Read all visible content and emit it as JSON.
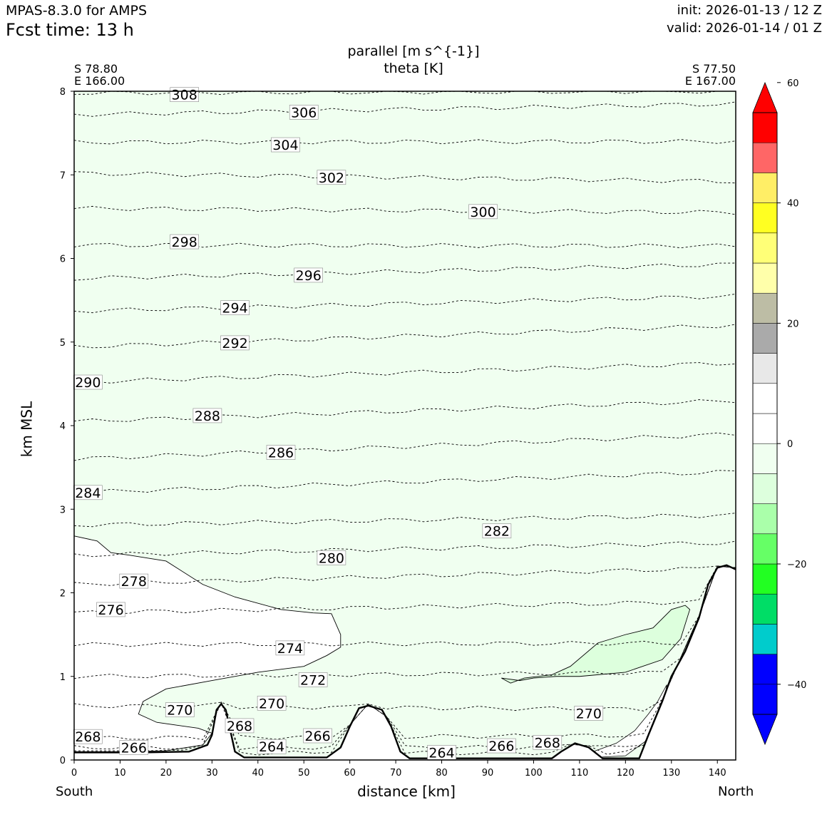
{
  "header": {
    "model": "MPAS-8.3.0 for AMPS",
    "fcst_label": "Fcst time:   13 h",
    "init": "init: 2026-01-13 / 12 Z",
    "valid": "valid: 2026-01-14 / 01 Z"
  },
  "chart_data": {
    "type": "cross-section",
    "title_line1": "parallel [m s^{-1}]",
    "title_line2": "theta [K]",
    "left_endpoint": {
      "lat": "S 78.80",
      "lon": "E 166.00"
    },
    "right_endpoint": {
      "lat": "S 77.50",
      "lon": "E 167.00"
    },
    "xlabel": "distance [km]",
    "ylabel": "km MSL",
    "xlim": [
      0,
      144
    ],
    "ylim": [
      0,
      8
    ],
    "xticks": [
      0,
      10,
      20,
      30,
      40,
      50,
      60,
      70,
      80,
      90,
      100,
      110,
      120,
      130,
      140
    ],
    "yticks": [
      0,
      1,
      2,
      3,
      4,
      5,
      6,
      7,
      8
    ],
    "left_side_label": "South",
    "right_side_label": "North",
    "terrain": [
      [
        0,
        0.09
      ],
      [
        15,
        0.09
      ],
      [
        25,
        0.1
      ],
      [
        29,
        0.18
      ],
      [
        30,
        0.3
      ],
      [
        31,
        0.6
      ],
      [
        32,
        0.67
      ],
      [
        33,
        0.6
      ],
      [
        34,
        0.35
      ],
      [
        35,
        0.1
      ],
      [
        37,
        0.03
      ],
      [
        55,
        0.03
      ],
      [
        58,
        0.15
      ],
      [
        60,
        0.4
      ],
      [
        62,
        0.62
      ],
      [
        64,
        0.65
      ],
      [
        67,
        0.6
      ],
      [
        69,
        0.4
      ],
      [
        71,
        0.1
      ],
      [
        73,
        0.02
      ],
      [
        104,
        0.02
      ],
      [
        106,
        0.1
      ],
      [
        109,
        0.2
      ],
      [
        112,
        0.15
      ],
      [
        115,
        0.02
      ],
      [
        123,
        0.02
      ],
      [
        125,
        0.3
      ],
      [
        128,
        0.7
      ],
      [
        130,
        1.0
      ],
      [
        133,
        1.3
      ],
      [
        136,
        1.7
      ],
      [
        138,
        2.1
      ],
      [
        140,
        2.3
      ],
      [
        142,
        2.33
      ],
      [
        144,
        2.28
      ]
    ],
    "theta_contours": [
      {
        "label": "264",
        "x": 43,
        "y": 0.16,
        "y0": 0.08,
        "y1": 0.09
      },
      {
        "label": "264",
        "x": 80,
        "y": 0.09,
        "y0": 0.06,
        "y1": 0.06
      },
      {
        "label": "266",
        "x": 13,
        "y": 0.15,
        "y0": 0.15,
        "y1": 0.15
      },
      {
        "label": "266",
        "x": 53,
        "y": 0.29,
        "y0": 0.26,
        "y1": 0.28
      },
      {
        "label": "266",
        "x": 93,
        "y": 0.17,
        "y0": 0.15,
        "y1": 0.18
      },
      {
        "label": "268",
        "x": 3,
        "y": 0.28,
        "y0": 0.26,
        "y1": 0.3
      },
      {
        "label": "268",
        "x": 36,
        "y": 0.41,
        "y0": 0.26,
        "y1": 0.3
      },
      {
        "label": "268",
        "x": 103,
        "y": 0.21,
        "y0": 0.26,
        "y1": 0.3
      },
      {
        "label": "270",
        "x": 23,
        "y": 0.6,
        "y0": 0.65,
        "y1": 0.6
      },
      {
        "label": "270",
        "x": 43,
        "y": 0.68,
        "y0": 0.65,
        "y1": 0.6
      },
      {
        "label": "270",
        "x": 112,
        "y": 0.56,
        "y0": 0.65,
        "y1": 0.6
      },
      {
        "label": "272",
        "x": 52,
        "y": 0.96,
        "y0": 1.0,
        "y1": 1.05
      },
      {
        "label": "274",
        "x": 47,
        "y": 1.34,
        "y0": 1.38,
        "y1": 1.4
      },
      {
        "label": "276",
        "x": 8,
        "y": 1.8,
        "y0": 1.76,
        "y1": 1.9
      },
      {
        "label": "278",
        "x": 13,
        "y": 2.14,
        "y0": 2.1,
        "y1": 2.3
      },
      {
        "label": "280",
        "x": 56,
        "y": 2.42,
        "y0": 2.45,
        "y1": 2.6
      },
      {
        "label": "282",
        "x": 92,
        "y": 2.74,
        "y0": 2.81,
        "y1": 2.93
      },
      {
        "label": "284",
        "x": 3,
        "y": 3.2,
        "y0": 3.2,
        "y1": 3.45
      },
      {
        "label": "286",
        "x": 45,
        "y": 3.68,
        "y0": 3.6,
        "y1": 3.9
      },
      {
        "label": "288",
        "x": 29,
        "y": 4.12,
        "y0": 4.05,
        "y1": 4.3
      },
      {
        "label": "290",
        "x": 3,
        "y": 4.52,
        "y0": 4.52,
        "y1": 4.75
      },
      {
        "label": "292",
        "x": 35,
        "y": 4.99,
        "y0": 4.94,
        "y1": 5.2
      },
      {
        "label": "294",
        "x": 35,
        "y": 5.41,
        "y0": 5.37,
        "y1": 5.55
      },
      {
        "label": "296",
        "x": 51,
        "y": 5.8,
        "y0": 5.76,
        "y1": 5.93
      },
      {
        "label": "298",
        "x": 24,
        "y": 6.2,
        "y0": 6.16,
        "y1": 6.15
      },
      {
        "label": "300",
        "x": 89,
        "y": 6.56,
        "y0": 6.6,
        "y1": 6.55
      },
      {
        "label": "302",
        "x": 56,
        "y": 6.97,
        "y0": 7.02,
        "y1": 6.92
      },
      {
        "label": "304",
        "x": 46,
        "y": 7.36,
        "y0": 7.39,
        "y1": 7.4
      },
      {
        "label": "306",
        "x": 50,
        "y": 7.75,
        "y0": 7.72,
        "y1": 7.85
      },
      {
        "label": "308",
        "x": 24,
        "y": 7.96,
        "y0": 7.98,
        "y1": 8.0
      }
    ],
    "colorbar": {
      "variable": "parallel wind",
      "units": "m s^-1",
      "tick_labels": [
        "60",
        "40",
        "20",
        "0",
        "−20",
        "−40"
      ],
      "tick_values": [
        60,
        40,
        20,
        0,
        -20,
        -40
      ],
      "levels": [
        -45,
        -40,
        -35,
        -30,
        -25,
        -20,
        -15,
        -10,
        -5,
        0,
        5,
        10,
        15,
        20,
        25,
        30,
        35,
        40,
        45,
        50,
        55
      ],
      "colors": [
        "#0000ff",
        "#0000ff",
        "#00cccc",
        "#00dd66",
        "#22ff22",
        "#66ff66",
        "#aaffaa",
        "#ddffdd",
        "#f0fff0",
        "#ffffff",
        "#ffffff",
        "#e8e8e8",
        "#aaaaaa",
        "#bdbda5",
        "#ffffaa",
        "#ffff77",
        "#ffff22",
        "#ffee66",
        "#ff6666",
        "#ff0000"
      ],
      "extend_low_color": "#0000ff",
      "extend_high_color": "#ff0000"
    }
  }
}
